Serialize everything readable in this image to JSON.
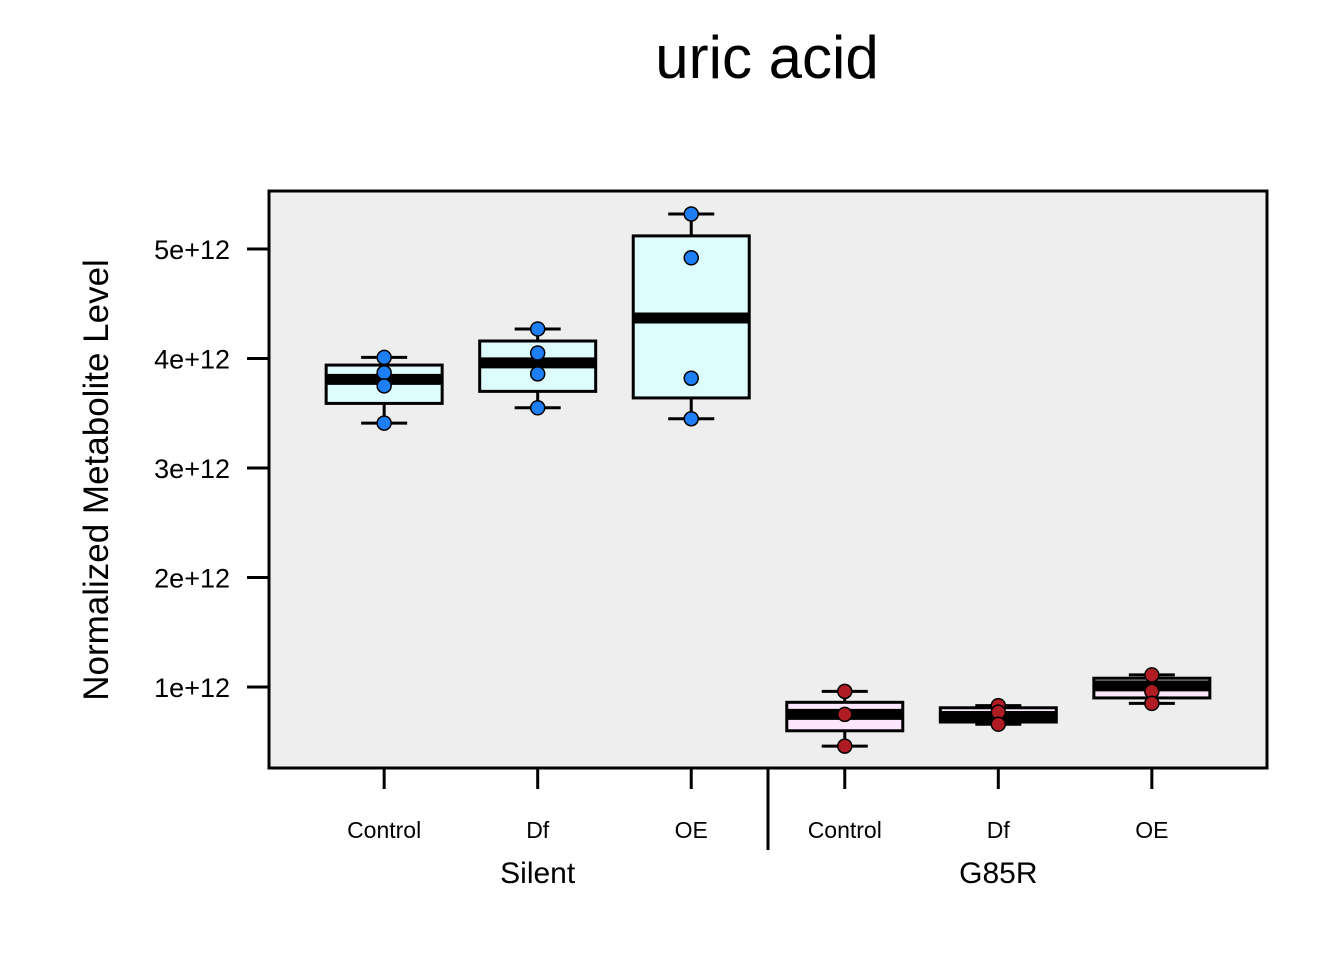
{
  "chart_data": {
    "type": "box",
    "title": "uric acid",
    "ylabel": "Normalized Metabolite Level",
    "xlabel": "",
    "ylim": [
      260000000000.0,
      5530000000000.0
    ],
    "yticks": [
      {
        "value": 1000000000000.0,
        "label": "1e+12"
      },
      {
        "value": 2000000000000.0,
        "label": "2e+12"
      },
      {
        "value": 3000000000000.0,
        "label": "3e+12"
      },
      {
        "value": 4000000000000.0,
        "label": "4e+12"
      },
      {
        "value": 5000000000000.0,
        "label": "5e+12"
      }
    ],
    "grid": false,
    "background": "#eeeeee",
    "groups": [
      {
        "name": "Silent",
        "box_fill": "#ddfdfd",
        "point_color": "#1e7ff5",
        "boxes": [
          {
            "category": "Control",
            "whisker_low": 3410000000000.0,
            "q1": 3590000000000.0,
            "median": 3810000000000.0,
            "q3": 3940000000000.0,
            "whisker_high": 4010000000000.0,
            "points": [
              4010000000000.0,
              3870000000000.0,
              3750000000000.0,
              3410000000000.0
            ]
          },
          {
            "category": "Df",
            "whisker_low": 3550000000000.0,
            "q1": 3700000000000.0,
            "median": 3960000000000.0,
            "q3": 4160000000000.0,
            "whisker_high": 4270000000000.0,
            "points": [
              4270000000000.0,
              4050000000000.0,
              3860000000000.0,
              3550000000000.0
            ]
          },
          {
            "category": "OE",
            "whisker_low": 3450000000000.0,
            "q1": 3640000000000.0,
            "median": 4370000000000.0,
            "q3": 5120000000000.0,
            "whisker_high": 5320000000000.0,
            "points": [
              5320000000000.0,
              4920000000000.0,
              3820000000000.0,
              3450000000000.0
            ]
          }
        ]
      },
      {
        "name": "G85R",
        "box_fill": "#fde6fb",
        "point_color": "#b01c24",
        "boxes": [
          {
            "category": "Control",
            "whisker_low": 460000000000.0,
            "q1": 600000000000.0,
            "median": 750000000000.0,
            "q3": 860000000000.0,
            "whisker_high": 960000000000.0,
            "points": [
              960000000000.0,
              750000000000.0,
              460000000000.0
            ]
          },
          {
            "category": "Df",
            "whisker_low": 660000000000.0,
            "q1": 680000000000.0,
            "median": 730000000000.0,
            "q3": 810000000000.0,
            "whisker_high": 830000000000.0,
            "points": [
              830000000000.0,
              770000000000.0,
              660000000000.0
            ]
          },
          {
            "category": "OE",
            "whisker_low": 850000000000.0,
            "q1": 900000000000.0,
            "median": 1010000000000.0,
            "q3": 1080000000000.0,
            "whisker_high": 1110000000000.0,
            "points": [
              1110000000000.0,
              960000000000.0,
              850000000000.0
            ]
          }
        ]
      }
    ]
  }
}
